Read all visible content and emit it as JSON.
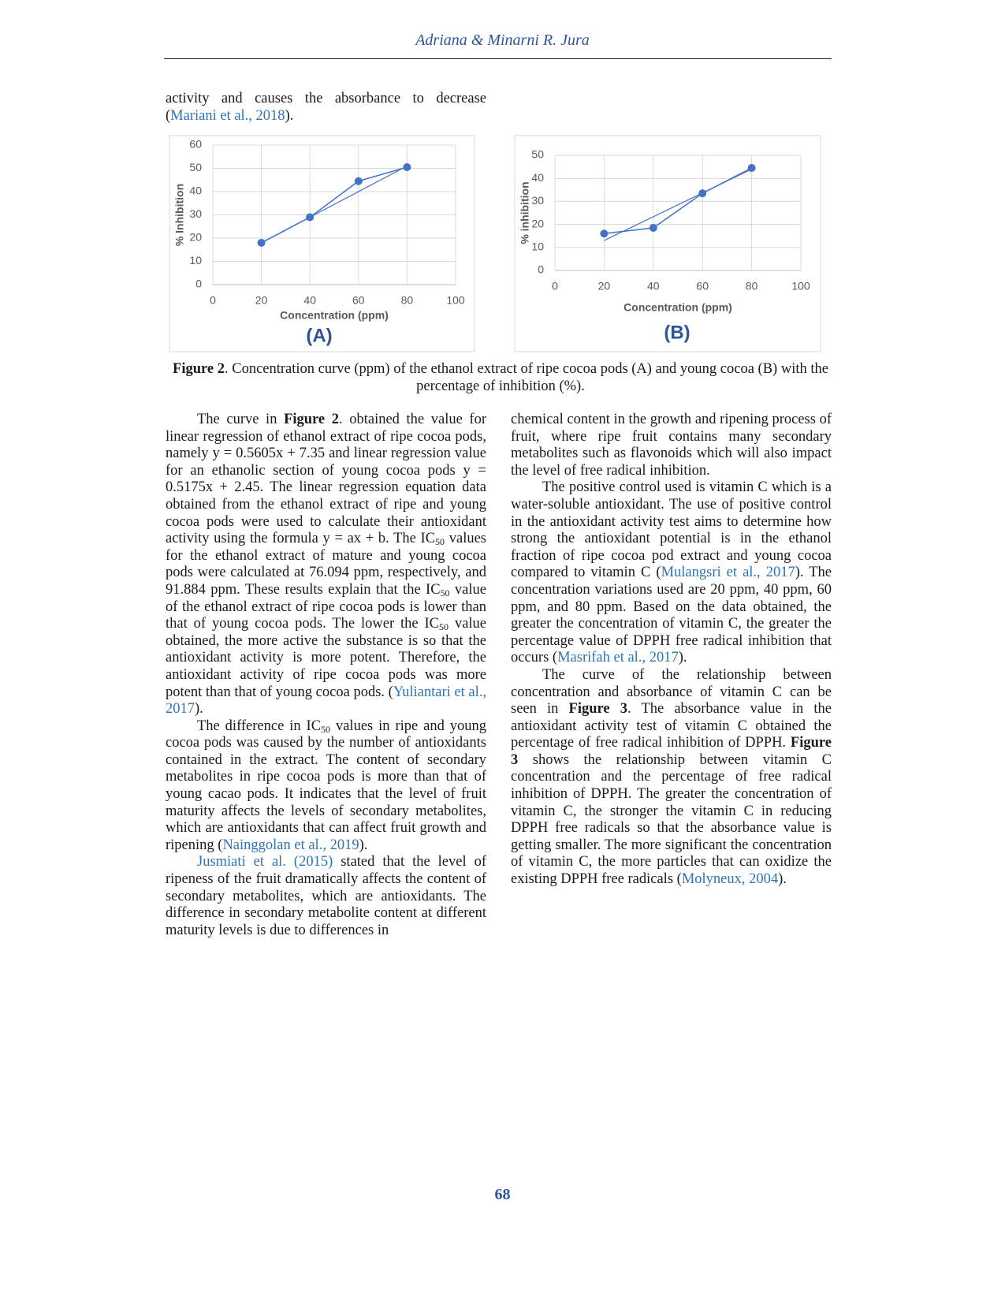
{
  "header": {
    "title": "Adriana & Minarni R. Jura"
  },
  "intro": [
    {
      "text": "activity and causes the absorbance to decrease ("
    },
    {
      "link": "Mariani et al., 2018"
    },
    {
      "text": ")."
    }
  ],
  "chart_data": [
    {
      "type": "line",
      "x_label": "Concentration (ppm)",
      "y_label": "% Inhibition",
      "panel_label": "(A)",
      "x": [
        20,
        40,
        60,
        80
      ],
      "values": [
        18,
        29,
        44.5,
        50.5
      ],
      "color": "#4472c4",
      "trendline": {
        "x": [
          20,
          80
        ],
        "values": [
          18,
          51
        ]
      },
      "xlim": [
        0,
        100
      ],
      "xticks": [
        0,
        20,
        40,
        60,
        80,
        100
      ],
      "ylim": [
        0,
        60
      ],
      "yticks": [
        0,
        10,
        20,
        30,
        40,
        50,
        60
      ],
      "grid": true
    },
    {
      "type": "line",
      "x_label": "Concentration (ppm)",
      "y_label": "% inhibition",
      "panel_label": "(B)",
      "x": [
        20,
        40,
        60,
        80
      ],
      "values": [
        16,
        18.5,
        33.5,
        44.5
      ],
      "color": "#4472c4",
      "trendline": {
        "x": [
          20,
          80
        ],
        "values": [
          13,
          44
        ]
      },
      "xlim": [
        0,
        100
      ],
      "xticks": [
        0,
        20,
        40,
        60,
        80,
        100
      ],
      "ylim": [
        0,
        50
      ],
      "yticks": [
        0,
        10,
        20,
        30,
        40,
        50
      ],
      "grid": true
    }
  ],
  "caption": [
    {
      "bold": "Figure 2"
    },
    {
      "text": ". Concentration curve (ppm) of the ethanol extract of ripe cocoa pods (A) and young cocoa (B) with the percentage of inhibition (%)."
    }
  ],
  "left_column": [
    [
      {
        "text": "The curve in "
      },
      {
        "bold": "Figure 2"
      },
      {
        "text": ". obtained the value for linear regression of ethanol extract of ripe cocoa pods, namely y = 0.5605x + 7.35 and linear regression value for an ethanolic section of young cocoa pods y = 0.5175x + 2.45. The linear regression equation data obtained from the ethanol extract of ripe and young cocoa pods were used to calculate their antioxidant activity using the formula y = ax + b. The IC"
      },
      {
        "sub": "50"
      },
      {
        "text": " values for the ethanol extract of mature and young cocoa pods were calculated at 76.094 ppm, respectively, and 91.884 ppm. These results explain that the IC"
      },
      {
        "sub": "50"
      },
      {
        "text": " value of the ethanol extract of ripe cocoa pods is lower than that of young cocoa pods. The lower the IC"
      },
      {
        "sub": "50"
      },
      {
        "text": " value obtained, the more active the substance is so that the antioxidant activity is more potent. Therefore, the antioxidant activity of ripe cocoa pods was more potent than that of young cocoa pods. ("
      },
      {
        "link": "Yuliantari et al., 2017"
      },
      {
        "text": ")."
      }
    ],
    [
      {
        "text": "The difference in IC"
      },
      {
        "sub": "50"
      },
      {
        "text": " values in ripe and young cocoa pods was caused by the number of antioxidants contained in the extract. The content of secondary metabolites in ripe cocoa pods is more than that of young cacao pods. It indicates that the level of fruit maturity affects the levels of secondary metabolites, which are antioxidants that can affect fruit growth and ripening ("
      },
      {
        "link": "Nainggolan et al., 2019"
      },
      {
        "text": ")."
      }
    ],
    [
      {
        "link": "Jusmiati et al. (2015)"
      },
      {
        "text": " stated that the level of ripeness of the fruit dramatically affects the content of secondary metabolites, which are antioxidants. The difference in secondary metabolite content at different maturity levels is due to differences in"
      }
    ]
  ],
  "right_column": [
    [
      {
        "text": "chemical content in the growth and ripening process of fruit, where ripe fruit contains many secondary metabolites such as flavonoids which will also impact the level of free radical inhibition."
      }
    ],
    [
      {
        "text": "The positive control used is vitamin C which is a water-soluble antioxidant. The use of positive control in the antioxidant activity test aims to determine how strong the antioxidant potential is in the ethanol fraction of ripe cocoa pod extract and young cocoa compared to vitamin C ("
      },
      {
        "link": "Mulangsri et al., 2017"
      },
      {
        "text": "). The concentration variations used are 20 ppm, 40 ppm, 60 ppm, and 80 ppm. Based on the data obtained, the greater the concentration of vitamin C, the greater the percentage value of DPPH free radical inhibition that occurs ("
      },
      {
        "link": "Masrifah et al., 2017"
      },
      {
        "text": ")."
      }
    ],
    [
      {
        "text": "The curve of the relationship between concentration and absorbance of vitamin C can be seen in "
      },
      {
        "bold": "Figure 3"
      },
      {
        "text": ". The absorbance value in the antioxidant activity test of vitamin C obtained the percentage of free radical inhibition of DPPH. "
      },
      {
        "bold": "Figure 3"
      },
      {
        "text": " shows the relationship between vitamin C concentration and the percentage of free radical inhibition of DPPH. The greater the concentration of vitamin C, the stronger the vitamin C in reducing DPPH free radicals so that the absorbance value is getting smaller. The more significant the concentration of vitamin C, the more particles that can oxidize the existing DPPH free radicals ("
      },
      {
        "link": "Molyneux, 2004"
      },
      {
        "text": ")."
      }
    ]
  ],
  "page_number": "68"
}
